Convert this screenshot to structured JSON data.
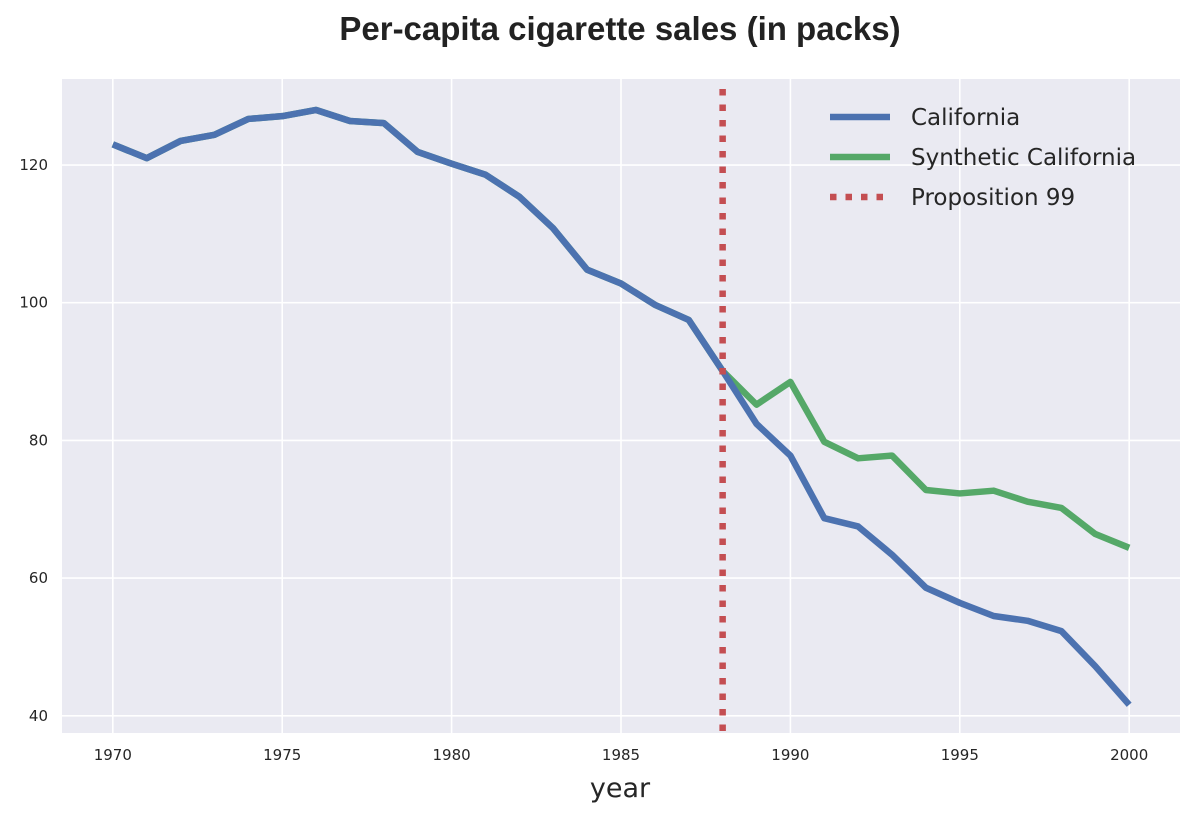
{
  "chart_data": {
    "type": "line",
    "title": "Per-capita cigarette sales (in packs)",
    "xlabel": "year",
    "ylabel": "",
    "xlim": [
      1968.5,
      2001.5
    ],
    "ylim": [
      37.5,
      132.5
    ],
    "xticks": [
      1970,
      1975,
      1980,
      1985,
      1990,
      1995,
      2000
    ],
    "xtick_labels": [
      "1970",
      "1975",
      "1980",
      "1985",
      "1990",
      "1995",
      "2000"
    ],
    "yticks": [
      40,
      60,
      80,
      100,
      120
    ],
    "ytick_labels": [
      "40",
      "60",
      "80",
      "100",
      "120"
    ],
    "grid": true,
    "legend_position": "upper right",
    "x": [
      1970,
      1971,
      1972,
      1973,
      1974,
      1975,
      1976,
      1977,
      1978,
      1979,
      1980,
      1981,
      1982,
      1983,
      1984,
      1985,
      1986,
      1987,
      1988,
      1989,
      1990,
      1991,
      1992,
      1993,
      1994,
      1995,
      1996,
      1997,
      1998,
      1999,
      2000
    ],
    "series": [
      {
        "name": "California",
        "color": "#4c72b0",
        "style": "solid",
        "values": [
          123.0,
          121.0,
          123.5,
          124.4,
          126.7,
          127.1,
          128.0,
          126.4,
          126.1,
          121.9,
          120.2,
          118.6,
          115.4,
          110.8,
          104.8,
          102.8,
          99.7,
          97.5,
          90.1,
          82.4,
          77.8,
          68.7,
          67.5,
          63.4,
          58.6,
          56.4,
          54.5,
          53.8,
          52.3,
          47.2,
          41.6
        ]
      },
      {
        "name": "Synthetic California",
        "color": "#55a868",
        "style": "solid",
        "values": [
          123.0,
          121.0,
          123.5,
          124.4,
          126.7,
          127.1,
          128.0,
          126.4,
          126.1,
          121.9,
          120.2,
          118.6,
          115.4,
          110.8,
          104.8,
          102.8,
          99.7,
          97.5,
          90.1,
          85.2,
          88.5,
          79.8,
          77.4,
          77.8,
          72.8,
          72.3,
          72.7,
          71.1,
          70.2,
          66.4,
          64.4
        ]
      }
    ],
    "vlines": [
      {
        "name": "Proposition 99",
        "x": 1988,
        "color": "#c44e52",
        "style": "dotted"
      }
    ],
    "background_color": "#eaeaf2",
    "grid_color": "#ffffff"
  }
}
